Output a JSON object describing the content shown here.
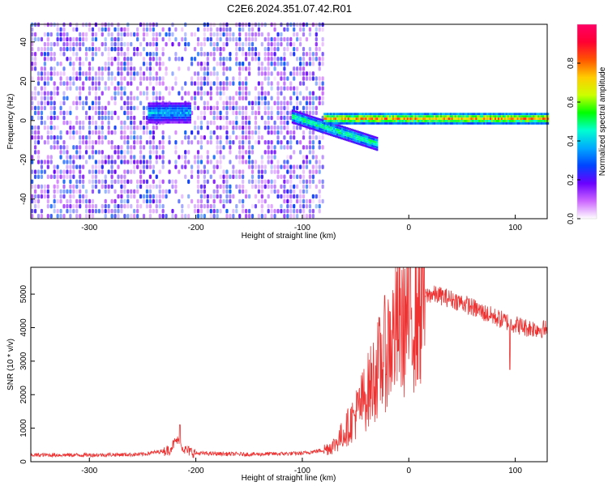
{
  "title": "C2E6.2024.351.07.42.R01",
  "chart_data": [
    {
      "type": "heatmap",
      "xlabel": "Height of straight line (km)",
      "ylabel": "Frequency (Hz)",
      "xlim": [
        -355,
        130
      ],
      "ylim": [
        -50,
        49
      ],
      "xticks": [
        -300,
        -200,
        -100,
        0,
        100
      ],
      "xtick_labels": [
        "-300",
        "-200",
        "-100",
        "0",
        "100"
      ],
      "yticks": [
        -40,
        -20,
        0,
        20,
        40
      ],
      "ytick_labels": [
        "-40",
        "-20",
        "0",
        "20",
        "40"
      ],
      "colorbar": {
        "label": "Normalized spectral amplitude",
        "range": [
          0,
          1
        ],
        "ticks": [
          0.0,
          0.2,
          0.4,
          0.6,
          0.8
        ],
        "tick_labels": [
          "0.0",
          "0.2",
          "0.4",
          "0.6",
          "0.8"
        ],
        "colors": [
          "#ffffff",
          "#cc66ff",
          "#6a00ff",
          "#0044ff",
          "#00aaff",
          "#00ffd0",
          "#00ff00",
          "#ccff00",
          "#ffcc00",
          "#ff5500",
          "#ff0033",
          "#ff0066"
        ]
      },
      "noise_region": {
        "x_range": [
          -355,
          -80
        ],
        "level": [
          0.05,
          0.3
        ]
      },
      "features": [
        {
          "x_range": [
            -245,
            -205
          ],
          "freq_center": 4,
          "freq_spread": 5,
          "level": 0.45
        },
        {
          "x_range": [
            -110,
            -30
          ],
          "freq_start": 2,
          "freq_end": -12,
          "level": 0.6
        },
        {
          "x_range": [
            -80,
            130
          ],
          "freq_center": 1,
          "freq_spread": 2.5,
          "level": 0.9
        }
      ],
      "grid": false,
      "legend": "right"
    },
    {
      "type": "line",
      "xlabel": "Height of straight line (km)",
      "ylabel": "SNR (10 * v/v)",
      "xlim": [
        -355,
        130
      ],
      "ylim": [
        0,
        5800
      ],
      "xticks": [
        -300,
        -200,
        -100,
        0,
        100
      ],
      "xtick_labels": [
        "-300",
        "-200",
        "-100",
        "0",
        "100"
      ],
      "yticks": [
        0,
        1000,
        2000,
        3000,
        4000,
        5000
      ],
      "ytick_labels": [
        "0",
        "1000",
        "2000",
        "3000",
        "4000",
        "5000"
      ],
      "series_color": "#ee3333",
      "x": [
        -355,
        -300,
        -250,
        -225,
        -218,
        -210,
        -200,
        -150,
        -100,
        -80,
        -70,
        -60,
        -50,
        -40,
        -30,
        -20,
        -10,
        0,
        10,
        15,
        20,
        30,
        50,
        70,
        90,
        110,
        130
      ],
      "values": [
        200,
        200,
        220,
        350,
        650,
        350,
        250,
        220,
        250,
        350,
        500,
        900,
        1400,
        2000,
        2700,
        3400,
        4000,
        4300,
        4600,
        4900,
        5000,
        4950,
        4750,
        4450,
        4200,
        4000,
        3950
      ],
      "spikes": [
        {
          "x": -215,
          "value": 1100
        },
        {
          "x": 13,
          "value": 5800
        },
        {
          "x": 95,
          "value": 2750
        }
      ],
      "grid": false,
      "legend": "none"
    }
  ]
}
